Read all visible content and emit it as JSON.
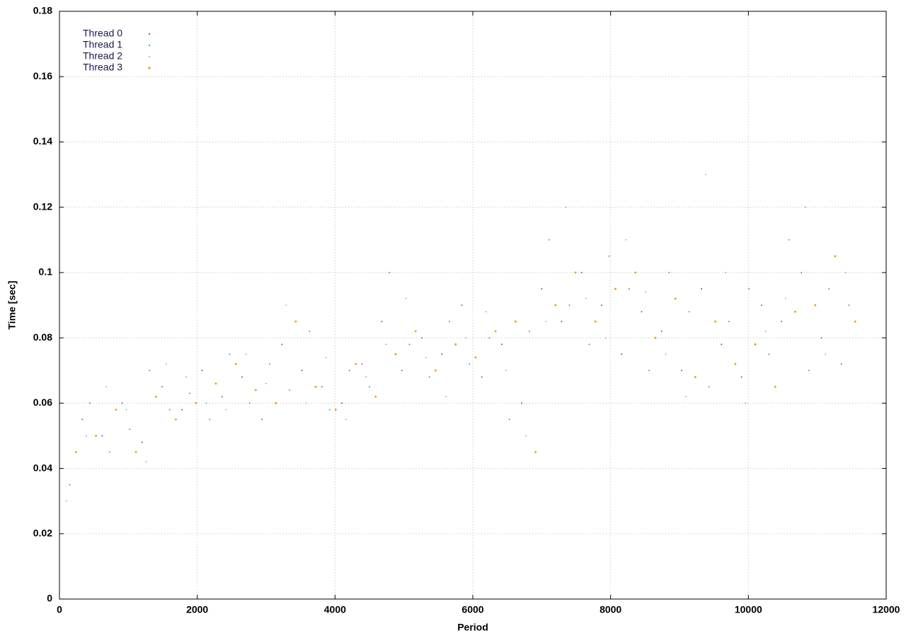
{
  "chart_data": {
    "type": "scatter",
    "x_label": "Period",
    "y_label": "Time [sec]",
    "xlim": [
      0,
      12000
    ],
    "ylim": [
      0,
      0.18
    ],
    "xticks": [
      0,
      2000,
      4000,
      6000,
      8000,
      10000,
      12000
    ],
    "yticks": [
      0,
      0.02,
      0.04,
      0.06,
      0.08,
      0.1,
      0.12,
      0.14,
      0.16,
      0.18
    ],
    "grid": true,
    "legend": "top-left",
    "series": [
      {
        "name": "Thread 0",
        "color": "#9400d3",
        "x": [
          40,
          330,
          620,
          910,
          1200,
          1490,
          1780,
          2070,
          2360,
          2650,
          2940,
          3230,
          3520,
          3810,
          4100,
          4390,
          4680,
          4970,
          5260,
          5550,
          5840,
          6130,
          6420,
          6710,
          7000,
          7290,
          7580,
          7870,
          8160,
          8450,
          8740,
          9030,
          9320,
          9610,
          9900,
          10190,
          10480,
          10770,
          11060,
          11350
        ],
        "values": [
          0.04,
          0.055,
          0.05,
          0.06,
          0.048,
          0.065,
          0.058,
          0.07,
          0.062,
          0.068,
          0.055,
          0.078,
          0.07,
          0.065,
          0.06,
          0.072,
          0.085,
          0.07,
          0.08,
          0.075,
          0.09,
          0.068,
          0.078,
          0.06,
          0.095,
          0.085,
          0.1,
          0.09,
          0.075,
          0.088,
          0.082,
          0.07,
          0.095,
          0.078,
          0.068,
          0.09,
          0.085,
          0.1,
          0.08,
          0.072
        ]
      },
      {
        "name": "Thread 1",
        "color": "#009e73",
        "x": [
          150,
          440,
          730,
          1020,
          1310,
          1600,
          1890,
          2180,
          2470,
          2760,
          3050,
          3340,
          3630,
          3920,
          4210,
          4500,
          4790,
          5080,
          5370,
          5660,
          5950,
          6240,
          6530,
          6820,
          7110,
          7400,
          7690,
          7980,
          8270,
          8560,
          8850,
          9140,
          9430,
          9720,
          10010,
          10300,
          10590,
          10880,
          11170,
          11460
        ],
        "values": [
          0.035,
          0.06,
          0.045,
          0.052,
          0.07,
          0.058,
          0.063,
          0.055,
          0.075,
          0.06,
          0.072,
          0.064,
          0.082,
          0.058,
          0.07,
          0.065,
          0.1,
          0.078,
          0.068,
          0.085,
          0.072,
          0.08,
          0.055,
          0.082,
          0.11,
          0.09,
          0.078,
          0.105,
          0.095,
          0.07,
          0.1,
          0.088,
          0.065,
          0.085,
          0.095,
          0.075,
          0.11,
          0.07,
          0.095,
          0.09
        ]
      },
      {
        "name": "Thread 2",
        "color": "#56b4e9",
        "x": [
          100,
          390,
          680,
          970,
          1260,
          1550,
          1840,
          2130,
          2420,
          2710,
          3000,
          3290,
          3580,
          3870,
          4160,
          4450,
          4740,
          5030,
          5320,
          5610,
          5900,
          6190,
          6480,
          6770,
          7060,
          7350,
          7640,
          7930,
          8220,
          8510,
          8800,
          9090,
          9380,
          9670,
          9960,
          10250,
          10540,
          10830,
          11120,
          11410
        ],
        "values": [
          0.03,
          0.05,
          0.065,
          0.058,
          0.042,
          0.072,
          0.068,
          0.06,
          0.058,
          0.075,
          0.066,
          0.09,
          0.06,
          0.074,
          0.055,
          0.068,
          0.078,
          0.092,
          0.074,
          0.062,
          0.08,
          0.088,
          0.07,
          0.05,
          0.085,
          0.12,
          0.092,
          0.08,
          0.11,
          0.094,
          0.075,
          0.062,
          0.13,
          0.1,
          0.06,
          0.082,
          0.092,
          0.12,
          0.075,
          0.1
        ]
      },
      {
        "name": "Thread 3",
        "color": "#e69f00",
        "x": [
          240,
          530,
          820,
          1110,
          1400,
          1690,
          1980,
          2270,
          2560,
          2850,
          3140,
          3430,
          3720,
          4010,
          4300,
          4590,
          4880,
          5170,
          5460,
          5750,
          6040,
          6330,
          6620,
          6910,
          7200,
          7490,
          7780,
          8070,
          8360,
          8650,
          8940,
          9230,
          9520,
          9810,
          10100,
          10390,
          10680,
          10970,
          11260,
          11550
        ],
        "values": [
          0.045,
          0.05,
          0.058,
          0.045,
          0.062,
          0.055,
          0.06,
          0.066,
          0.072,
          0.064,
          0.06,
          0.085,
          0.065,
          0.058,
          0.072,
          0.062,
          0.075,
          0.082,
          0.07,
          0.078,
          0.074,
          0.082,
          0.085,
          0.045,
          0.09,
          0.1,
          0.085,
          0.095,
          0.1,
          0.08,
          0.092,
          0.068,
          0.085,
          0.072,
          0.078,
          0.065,
          0.088,
          0.09,
          0.105,
          0.085
        ]
      }
    ]
  }
}
